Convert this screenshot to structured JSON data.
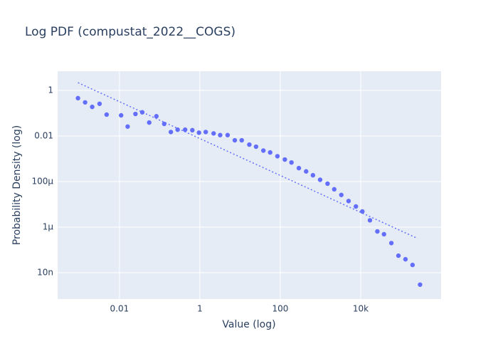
{
  "chart_data": {
    "type": "scatter",
    "title": "Log PDF (compustat_2022__COGS)",
    "x_label": "Value (log)",
    "y_label": "Probability Density (log)",
    "x_log": true,
    "y_log": true,
    "grid": true,
    "xlim": [
      0.00029,
      1000000
    ],
    "ylim": [
      7e-10,
      7
    ],
    "xticks": [
      0.01,
      1,
      100,
      {
        "value": 10000,
        "label": "10k"
      }
    ],
    "yticks": [
      {
        "value": 1e-08,
        "label": "10n"
      },
      {
        "value": 1e-06,
        "label": "1μ"
      },
      {
        "value": 0.0001,
        "label": "100μ"
      },
      0.01,
      1
    ],
    "series": [
      {
        "mode": "markers",
        "color": "#636efa",
        "x": [
          0.00093,
          0.0014,
          0.0021,
          0.0032,
          0.0048,
          0.011,
          0.016,
          0.025,
          0.037,
          0.055,
          0.083,
          0.13,
          0.19,
          0.28,
          0.43,
          0.65,
          0.95,
          1.4,
          2.2,
          3.2,
          4.9,
          7.4,
          11,
          17,
          25,
          38,
          56,
          85,
          130,
          190,
          290,
          440,
          650,
          980,
          1500,
          2200,
          3300,
          5000,
          7600,
          11000,
          17000,
          26000,
          38000,
          58000,
          87000,
          130000,
          195000,
          300000
        ],
        "values": [
          0.46,
          0.3,
          0.19,
          0.26,
          0.087,
          0.081,
          0.026,
          0.093,
          0.11,
          0.039,
          0.074,
          0.034,
          0.015,
          0.019,
          0.019,
          0.018,
          0.014,
          0.015,
          0.013,
          0.011,
          0.011,
          0.0065,
          0.0065,
          0.0042,
          0.0034,
          0.0023,
          0.0019,
          0.0013,
          0.00093,
          0.00069,
          0.00039,
          0.00028,
          0.00019,
          0.00012,
          8.1e-05,
          4.6e-05,
          2.6e-05,
          1.4e-05,
          8.1e-06,
          4.9e-06,
          2e-06,
          6.5e-07,
          4.9e-07,
          2e-07,
          5.6e-08,
          3.9e-08,
          2.2e-08,
          3e-09
        ]
      },
      {
        "mode": "lines",
        "dash": "dot",
        "color": "#636efa",
        "x": [
          0.00093,
          260000
        ],
        "values": [
          2.2,
          3.2e-07
        ]
      }
    ]
  }
}
